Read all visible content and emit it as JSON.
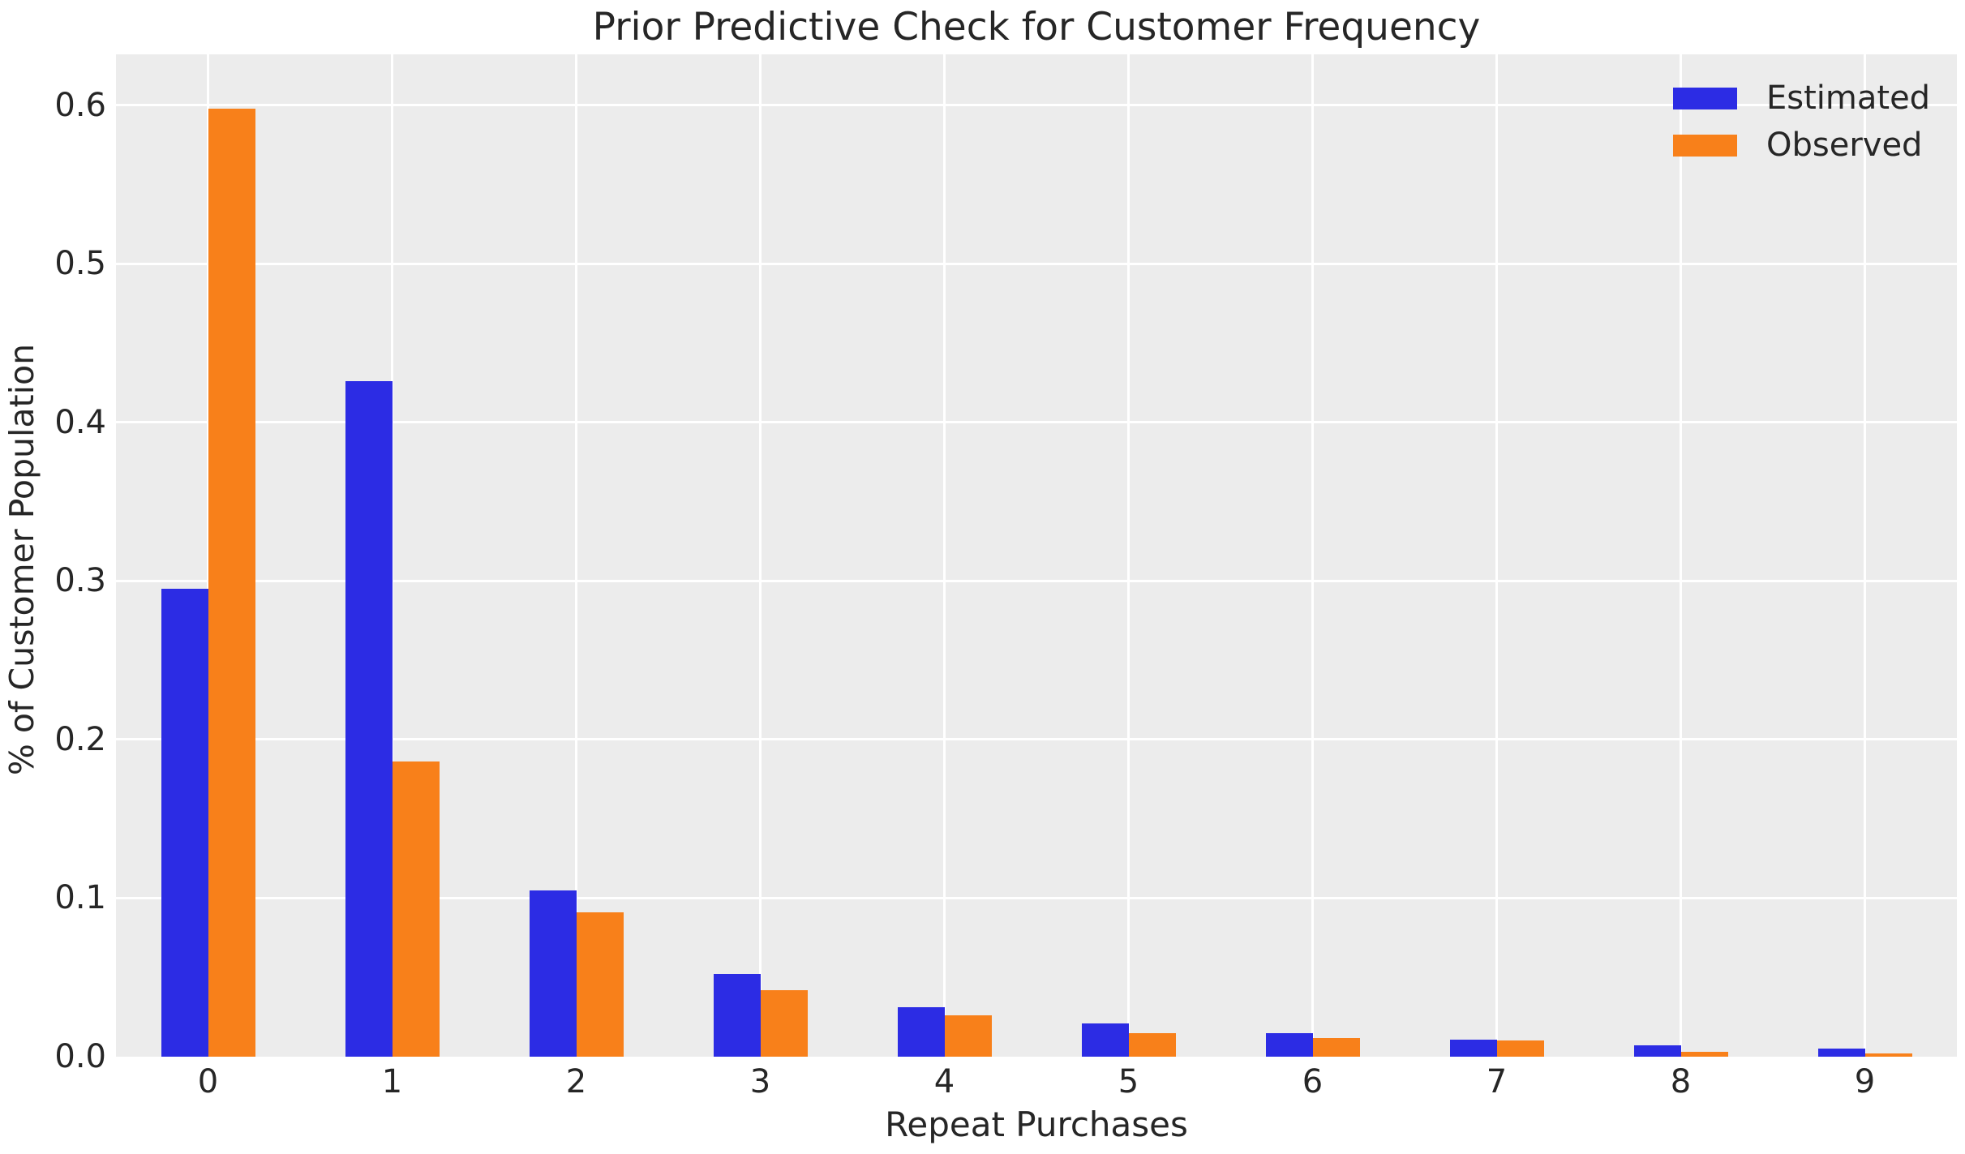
{
  "title": "Prior Predictive Check for Customer Frequency",
  "xlabel": "Repeat Purchases",
  "ylabel": "% of Customer Population",
  "colors": {
    "estimated": "#2c2ce4",
    "observed": "#f8801a",
    "plot_background": "#ececec",
    "gridline": "#ffffff",
    "text": "#262626",
    "figure_background": "#ffffff"
  },
  "legend": {
    "position": "upper right",
    "entries": [
      {
        "label": "Estimated",
        "color": "#2c2ce4"
      },
      {
        "label": "Observed",
        "color": "#f8801a"
      }
    ]
  },
  "chart_data": {
    "type": "bar",
    "title": "Prior Predictive Check for Customer Frequency",
    "xlabel": "Repeat Purchases",
    "ylabel": "% of Customer Population",
    "categories": [
      "0",
      "1",
      "2",
      "3",
      "4",
      "5",
      "6",
      "7",
      "8",
      "9"
    ],
    "series": [
      {
        "name": "Estimated",
        "color": "#2c2ce4",
        "values": [
          0.295,
          0.426,
          0.105,
          0.052,
          0.031,
          0.021,
          0.015,
          0.011,
          0.007,
          0.005
        ]
      },
      {
        "name": "Observed",
        "color": "#f8801a",
        "values": [
          0.598,
          0.186,
          0.091,
          0.042,
          0.026,
          0.015,
          0.012,
          0.01,
          0.003,
          0.002
        ]
      }
    ],
    "yticks": [
      0.0,
      0.1,
      0.2,
      0.3,
      0.4,
      0.5,
      0.6
    ],
    "ytick_labels": [
      "0.0",
      "0.1",
      "0.2",
      "0.3",
      "0.4",
      "0.5",
      "0.6"
    ],
    "ylim": [
      0,
      0.632
    ],
    "grid": true,
    "grid_axes": "both",
    "legend_position": "upper right"
  }
}
